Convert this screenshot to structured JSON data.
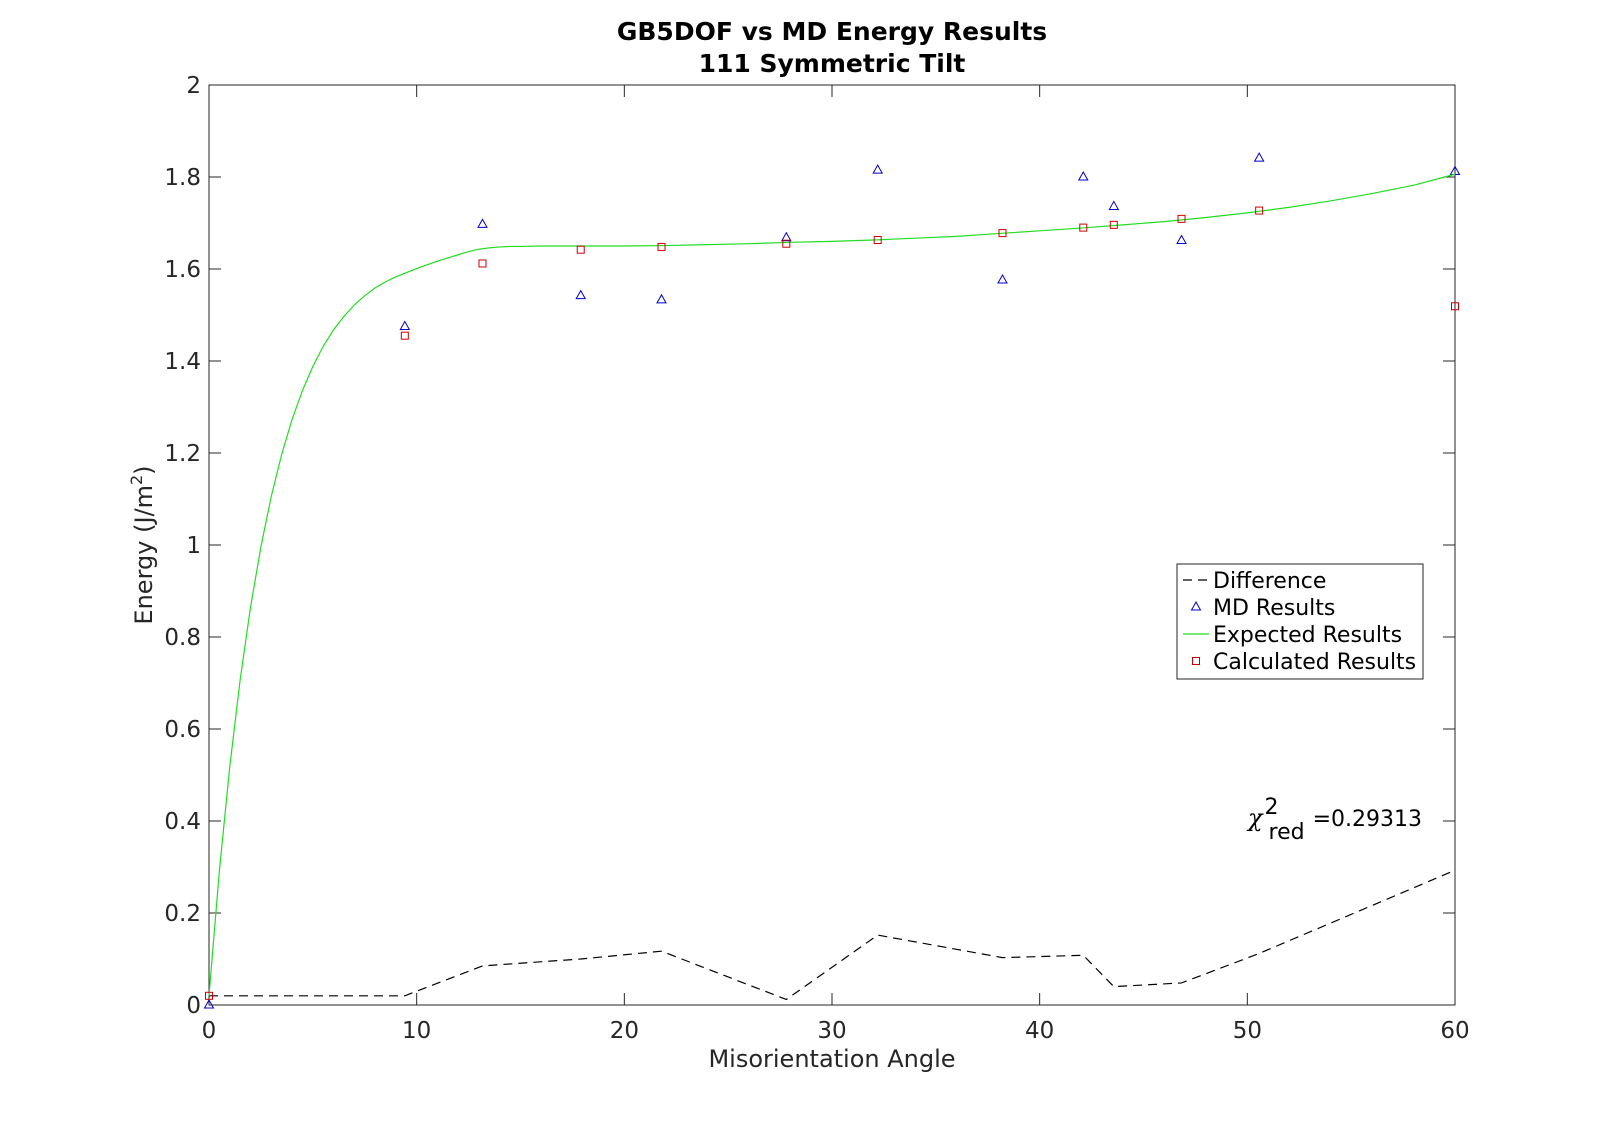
{
  "chart_data": {
    "type": "line",
    "title": "GB5DOF vs MD Energy Results",
    "subtitle": "111 Symmetric Tilt",
    "xlabel": "Misorientation Angle",
    "ylabel": {
      "text": "Energy (J/m",
      "sup": "2",
      "close": ")"
    },
    "xlim": [
      0,
      60
    ],
    "ylim": [
      0,
      2
    ],
    "xticks": [
      "0",
      "10",
      "20",
      "30",
      "40",
      "50",
      "60"
    ],
    "yticks": [
      "0",
      "0.2",
      "0.4",
      "0.6",
      "0.8",
      "1",
      "1.2",
      "1.4",
      "1.6",
      "1.8",
      "2"
    ],
    "grid": false,
    "legend_position": "right-middle",
    "series": [
      {
        "name": "Difference",
        "style": "dashed",
        "color": "#000000",
        "x": [
          0,
          9.43,
          13.17,
          17.9,
          21.79,
          27.8,
          32.2,
          38.21,
          42.1,
          43.57,
          46.83,
          50.57,
          60
        ],
        "y": [
          0.02,
          0.02,
          0.085,
          0.1,
          0.117,
          0.012,
          0.152,
          0.103,
          0.108,
          0.04,
          0.048,
          0.112,
          0.293
        ]
      },
      {
        "name": "MD Results",
        "style": "triangle-marker",
        "color": "#0000cc",
        "x": [
          0,
          9.43,
          13.17,
          17.9,
          21.79,
          27.8,
          32.2,
          38.21,
          42.1,
          43.57,
          46.83,
          50.57,
          60
        ],
        "y": [
          0.0,
          1.475,
          1.697,
          1.542,
          1.533,
          1.668,
          1.815,
          1.576,
          1.8,
          1.736,
          1.662,
          1.841,
          1.812
        ]
      },
      {
        "name": "Expected Results",
        "style": "solid",
        "color": "#22dd22",
        "x": [
          0,
          0.5,
          1,
          1.5,
          2,
          2.5,
          3,
          3.5,
          4,
          4.5,
          5,
          5.5,
          6,
          6.5,
          7,
          7.5,
          8,
          8.5,
          9,
          9.5,
          10,
          10.5,
          11,
          11.5,
          12,
          12.5,
          13,
          13.5,
          14,
          14.5,
          15,
          16,
          18,
          20,
          22,
          24,
          26,
          28,
          30,
          32,
          34,
          36,
          38,
          40,
          42,
          44,
          46,
          48,
          50,
          52,
          54,
          56,
          58,
          60
        ],
        "y": [
          0.02,
          0.292,
          0.518,
          0.707,
          0.865,
          0.996,
          1.106,
          1.197,
          1.273,
          1.336,
          1.388,
          1.432,
          1.468,
          1.497,
          1.522,
          1.542,
          1.559,
          1.572,
          1.583,
          1.592,
          1.601,
          1.609,
          1.617,
          1.624,
          1.631,
          1.638,
          1.643,
          1.646,
          1.648,
          1.649,
          1.649,
          1.65,
          1.65,
          1.65,
          1.651,
          1.653,
          1.655,
          1.658,
          1.66,
          1.663,
          1.667,
          1.671,
          1.677,
          1.683,
          1.689,
          1.696,
          1.703,
          1.712,
          1.722,
          1.734,
          1.748,
          1.764,
          1.782,
          1.806
        ]
      },
      {
        "name": "Calculated Results",
        "style": "square-marker",
        "color": "#cc0000",
        "x": [
          0,
          9.43,
          13.17,
          17.9,
          21.79,
          27.8,
          32.2,
          38.21,
          42.1,
          43.57,
          46.83,
          50.57,
          60
        ],
        "y": [
          0.02,
          1.455,
          1.612,
          1.642,
          1.648,
          1.655,
          1.663,
          1.678,
          1.69,
          1.696,
          1.709,
          1.727,
          1.519
        ]
      }
    ],
    "annotation": {
      "symbol": "χ",
      "sup": "2",
      "sub": "red",
      "text": "=0.29313"
    }
  }
}
